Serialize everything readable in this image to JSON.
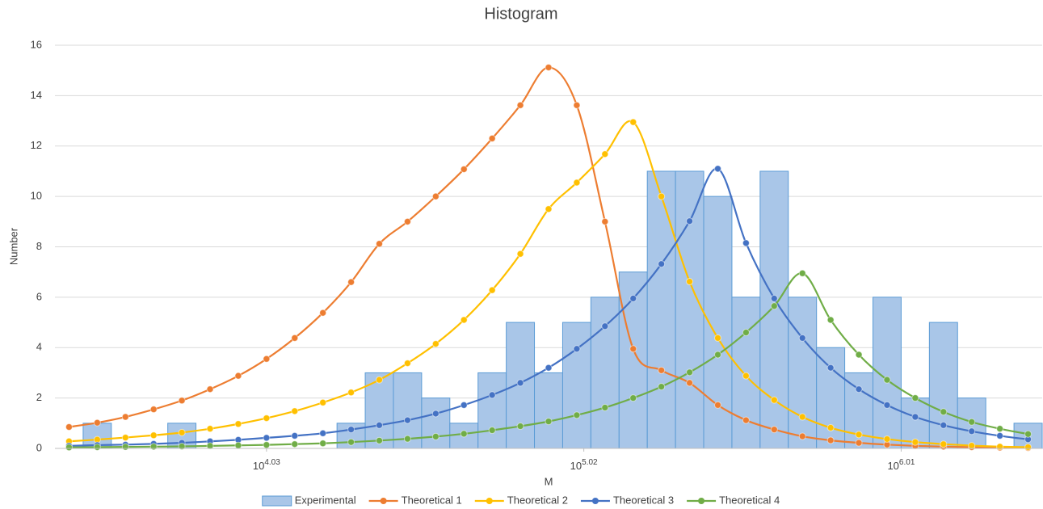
{
  "chart_data": {
    "type": "histogram",
    "title": "Histogram",
    "x_label": "M",
    "y_label": "Number",
    "xlog": true,
    "x_tick_base": "10",
    "xlim": [
      3.37,
      6.45
    ],
    "xticks": [
      4.03,
      5.02,
      6.01
    ],
    "ylim": [
      0,
      16
    ],
    "yticks": [
      0,
      2,
      4,
      6,
      8,
      10,
      12,
      14,
      16
    ],
    "grid": true,
    "legend": "bottom",
    "hist_name": "Experimental",
    "hist_color": "#a9c6e8",
    "hist_edge_color": "#5b9bd5",
    "bins": [
      3.37,
      3.458,
      3.546,
      3.634,
      3.722,
      3.81,
      3.898,
      3.986,
      4.074,
      4.162,
      4.25,
      4.338,
      4.426,
      4.514,
      4.602,
      4.69,
      4.778,
      4.866,
      4.954,
      5.042,
      5.13,
      5.218,
      5.306,
      5.394,
      5.482,
      5.57,
      5.658,
      5.746,
      5.834,
      5.922,
      6.01,
      6.098,
      6.186,
      6.274,
      6.362,
      6.45
    ],
    "counts": [
      0,
      1,
      0,
      0,
      1,
      0,
      0,
      0,
      0,
      0,
      1,
      3,
      3,
      2,
      1,
      3,
      5,
      3,
      5,
      6,
      7,
      11,
      11,
      10,
      6,
      11,
      6,
      4,
      3,
      6,
      2,
      5,
      2,
      0,
      1
    ],
    "x": [
      3.414,
      3.502,
      3.59,
      3.678,
      3.766,
      3.854,
      3.942,
      4.03,
      4.118,
      4.206,
      4.294,
      4.382,
      4.47,
      4.558,
      4.646,
      4.734,
      4.822,
      4.91,
      4.998,
      5.086,
      5.174,
      5.262,
      5.35,
      5.438,
      5.526,
      5.614,
      5.702,
      5.79,
      5.878,
      5.966,
      6.054,
      6.142,
      6.23,
      6.318,
      6.406
    ],
    "series": [
      {
        "name": "Theoretical 1",
        "color": "#ed7d31",
        "values": [
          0.85,
          1.02,
          1.25,
          1.55,
          1.9,
          2.35,
          2.88,
          3.55,
          4.38,
          5.38,
          6.6,
          8.12,
          9.0,
          10.0,
          11.08,
          12.3,
          13.62,
          15.12,
          13.62,
          9.0,
          3.95,
          3.1,
          2.6,
          1.72,
          1.12,
          0.75,
          0.48,
          0.32,
          0.22,
          0.15,
          0.1,
          0.07,
          0.05,
          0.03,
          0.02
        ]
      },
      {
        "name": "Theoretical 2",
        "color": "#ffc000",
        "values": [
          0.28,
          0.35,
          0.43,
          0.52,
          0.63,
          0.78,
          0.97,
          1.2,
          1.48,
          1.82,
          2.22,
          2.72,
          3.38,
          4.15,
          5.1,
          6.28,
          7.72,
          9.5,
          10.55,
          11.68,
          12.95,
          10.0,
          6.62,
          4.38,
          2.88,
          1.92,
          1.25,
          0.82,
          0.55,
          0.37,
          0.25,
          0.17,
          0.11,
          0.07,
          0.05
        ]
      },
      {
        "name": "Theoretical 3",
        "color": "#4472c4",
        "values": [
          0.1,
          0.13,
          0.15,
          0.18,
          0.22,
          0.28,
          0.34,
          0.42,
          0.5,
          0.6,
          0.75,
          0.92,
          1.12,
          1.38,
          1.72,
          2.12,
          2.6,
          3.2,
          3.95,
          4.85,
          5.95,
          7.32,
          9.02,
          11.1,
          8.15,
          5.95,
          4.38,
          3.2,
          2.35,
          1.72,
          1.25,
          0.92,
          0.68,
          0.5,
          0.36
        ]
      },
      {
        "name": "Theoretical 4",
        "color": "#70ad47",
        "values": [
          0.04,
          0.05,
          0.06,
          0.07,
          0.08,
          0.1,
          0.12,
          0.14,
          0.17,
          0.2,
          0.25,
          0.31,
          0.38,
          0.47,
          0.58,
          0.72,
          0.88,
          1.07,
          1.32,
          1.62,
          2.0,
          2.45,
          3.02,
          3.72,
          4.6,
          5.65,
          6.95,
          5.1,
          3.72,
          2.72,
          2.0,
          1.45,
          1.05,
          0.78,
          0.57
        ]
      }
    ]
  }
}
